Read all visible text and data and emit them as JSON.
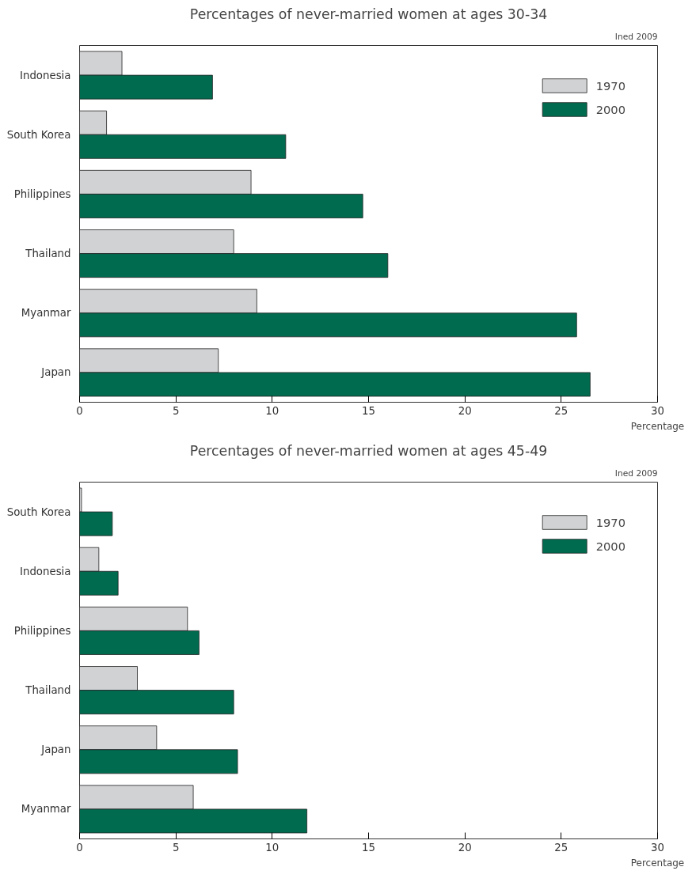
{
  "chart_data": [
    {
      "type": "bar",
      "orientation": "horizontal",
      "title": "Percentages of never-married women at ages 30-34",
      "xlabel": "Percentage",
      "annotations": [
        "Ined 2009"
      ],
      "categories": [
        "Indonesia",
        "South Korea",
        "Philippines",
        "Thailand",
        "Myanmar",
        "Japan"
      ],
      "series": [
        {
          "name": "1970",
          "color": "#d1d2d4",
          "values": [
            2.2,
            1.4,
            8.9,
            8.0,
            9.2,
            7.2
          ]
        },
        {
          "name": "2000",
          "color": "#006b4f",
          "values": [
            6.9,
            10.7,
            14.7,
            16.0,
            25.8,
            26.5
          ]
        }
      ],
      "xlim": [
        0,
        30
      ],
      "xticks": [
        0,
        5,
        10,
        15,
        20,
        25,
        30
      ],
      "grid": false,
      "legend": "top right"
    },
    {
      "type": "bar",
      "orientation": "horizontal",
      "title": "Percentages of never-married women at ages 45-49",
      "xlabel": "Percentage",
      "annotations": [
        "Ined 2009"
      ],
      "categories": [
        "South Korea",
        "Indonesia",
        "Philippines",
        "Thailand",
        "Japan",
        "Myanmar"
      ],
      "series": [
        {
          "name": "1970",
          "color": "#d1d2d4",
          "values": [
            0.1,
            1.0,
            5.6,
            3.0,
            4.0,
            5.9
          ]
        },
        {
          "name": "2000",
          "color": "#006b4f",
          "values": [
            1.7,
            2.0,
            6.2,
            8.0,
            8.2,
            11.8
          ]
        }
      ],
      "xlim": [
        0,
        30
      ],
      "xticks": [
        0,
        5,
        10,
        15,
        20,
        25,
        30
      ],
      "grid": false,
      "legend": "top right"
    }
  ]
}
